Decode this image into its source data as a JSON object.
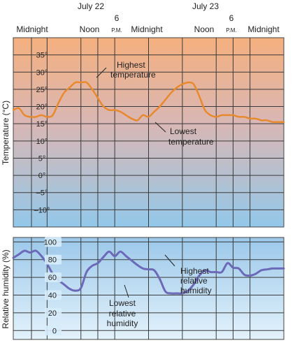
{
  "chart_data": [
    {
      "type": "line",
      "ylabel": "Temperature (°C)",
      "ylim": [
        -15,
        40
      ],
      "y_ticks": [
        "35°",
        "30°",
        "25°",
        "20°",
        "15°",
        "10°",
        "5°",
        "0°",
        "–5°",
        "–10°"
      ],
      "y_tick_values": [
        35,
        30,
        25,
        20,
        15,
        10,
        5,
        0,
        -5,
        -10
      ],
      "xlim": [
        0,
        48
      ],
      "x_unit": "hours from midnight July 22",
      "grid": true,
      "colors": {
        "line": "#e8892e",
        "bg_top": "#f5b07e",
        "bg_bottom": "#93c8ea",
        "grid": "#3a3a3a"
      },
      "series": [
        {
          "x": [
            0,
            1,
            2,
            3,
            4,
            5,
            6,
            7,
            8,
            9,
            10,
            11,
            12,
            13,
            14,
            15,
            16,
            17,
            18,
            19,
            20,
            21,
            22,
            23,
            24,
            25,
            26,
            27,
            28,
            29,
            30,
            31,
            32,
            33,
            34,
            35,
            36,
            37,
            38,
            39,
            40,
            41,
            42,
            43,
            44,
            45,
            46,
            47,
            48
          ],
          "y": [
            19,
            19.5,
            17.5,
            17,
            17,
            17.5,
            17,
            17.5,
            21,
            24,
            25.5,
            27,
            27,
            27,
            25,
            22.5,
            20,
            19,
            19,
            18.5,
            17.5,
            16.5,
            16,
            17.5,
            17,
            18.5,
            20,
            22,
            24,
            25.5,
            26.5,
            27,
            26.5,
            23,
            19,
            17.5,
            17,
            17.5,
            17.5,
            17.5,
            17,
            17,
            16.5,
            16.5,
            16,
            16,
            15.5,
            15.5,
            15.5
          ]
        }
      ],
      "annotations": [
        {
          "lines": [
            "Highest",
            "temperature"
          ]
        },
        {
          "lines": [
            "Lowest",
            "temperature"
          ]
        }
      ]
    },
    {
      "type": "line",
      "ylabel": "Relative humidity (%)",
      "ylim": [
        -10,
        105
      ],
      "y_ticks": [
        "100",
        "80",
        "60",
        "40",
        "20",
        "0"
      ],
      "y_tick_values": [
        100,
        80,
        60,
        40,
        20,
        0
      ],
      "xlim": [
        0,
        48
      ],
      "x_unit": "hours from midnight July 22",
      "grid": true,
      "colors": {
        "line": "#6c69b8",
        "bg_top": "#9cc8ea",
        "bg_bottom": "#e3f2fb",
        "grid": "#3a3a3a"
      },
      "series": [
        {
          "x": [
            0,
            1,
            2,
            3,
            4,
            5,
            6,
            7,
            8,
            9,
            10,
            11,
            12,
            13,
            14,
            15,
            16,
            17,
            18,
            19,
            20,
            21,
            22,
            23,
            24,
            25,
            26,
            27,
            28,
            29,
            30,
            31,
            32,
            33,
            34,
            35,
            36,
            37,
            38,
            39,
            40,
            41,
            42,
            43,
            44,
            45,
            46,
            47,
            48
          ],
          "y": [
            82,
            86,
            90,
            88,
            90,
            84,
            75,
            64,
            57,
            52,
            47,
            45,
            48,
            66,
            73,
            76,
            83,
            89,
            84,
            89,
            84,
            79,
            74,
            70,
            69,
            68,
            58,
            44,
            42,
            42,
            42,
            45,
            52,
            62,
            68,
            66,
            66,
            66,
            76,
            71,
            70,
            63,
            62,
            64,
            68,
            69,
            70,
            70,
            70
          ]
        }
      ],
      "annotations": [
        {
          "lines": [
            "Lowest",
            "relative",
            "humidity"
          ]
        },
        {
          "lines": [
            "Highest",
            "relative",
            "humidity"
          ]
        }
      ]
    }
  ],
  "x_axis": {
    "dates": [
      {
        "label": "July 22",
        "hour": 12
      },
      {
        "label": "July 23",
        "hour": 36
      }
    ],
    "times": [
      {
        "label": "Midnight",
        "hour": 0
      },
      {
        "label": "Noon",
        "hour": 12
      },
      {
        "label": "6",
        "sub": "P.M.",
        "hour": 18
      },
      {
        "label": "Midnight",
        "hour": 24
      },
      {
        "label": "Noon",
        "hour": 36
      },
      {
        "label": "6",
        "sub": "P.M.",
        "hour": 42
      },
      {
        "label": "Midnight",
        "hour": 48
      }
    ]
  }
}
